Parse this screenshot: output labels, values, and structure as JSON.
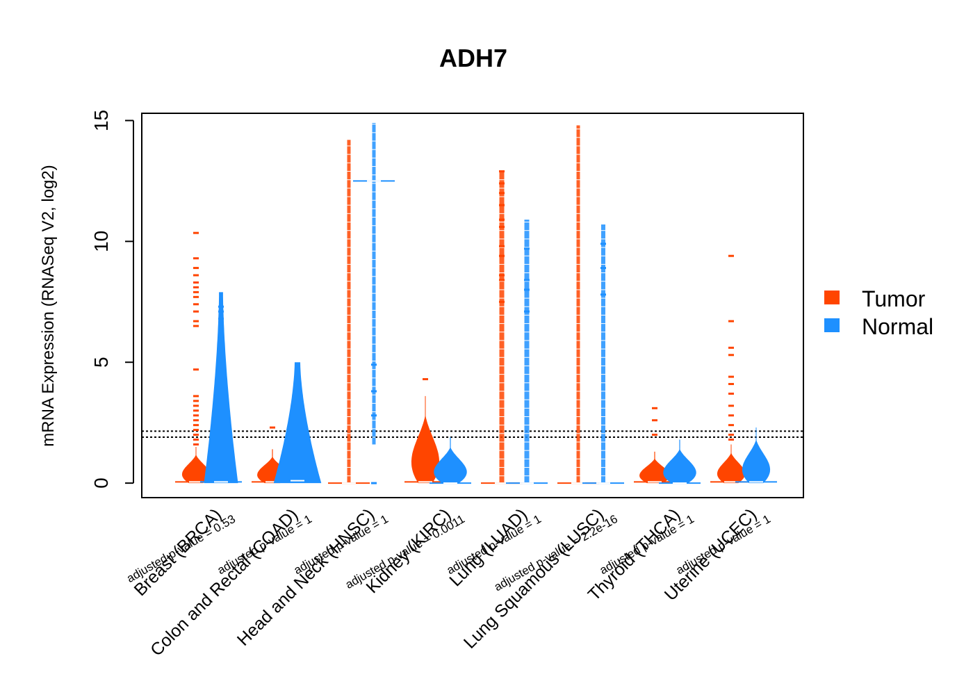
{
  "chart_data": {
    "type": "beanplot",
    "title": "ADH7",
    "ylabel": "mRNA Expression (RNASeq V2, log2)",
    "xlabel": "",
    "ylim": [
      -0.6,
      15.3
    ],
    "yticks": [
      0,
      5,
      10,
      15
    ],
    "reference_lines": [
      1.9,
      2.15
    ],
    "legend": {
      "position": "right",
      "items": [
        {
          "name": "Tumor",
          "color": "#FF4500"
        },
        {
          "name": "Normal",
          "color": "#1E90FF"
        }
      ]
    },
    "categories": [
      {
        "label": "Breast (BRCA)",
        "pvalue_label": "adjusted p-value = 0.53",
        "tumor": {
          "min": 0,
          "max": 1.5,
          "width": 0.55,
          "median": 0.05,
          "outliers": [
            1.6,
            1.8,
            2.0,
            2.2,
            2.4,
            2.6,
            2.8,
            3.0,
            3.2,
            3.4,
            3.6,
            4.7,
            6.5,
            6.7,
            7.1,
            7.4,
            7.7,
            7.9,
            8.1,
            8.3,
            8.6,
            8.9,
            9.3,
            10.35
          ]
        },
        "normal": {
          "min": 0,
          "max": 7.9,
          "width": 0.5,
          "median": 0.05,
          "outliers": [
            4.0,
            4.3,
            4.6,
            5.0,
            5.3,
            5.7,
            6.1,
            6.5,
            6.8,
            7.1,
            7.3
          ]
        }
      },
      {
        "label": "Colon and Rectal (COAD)",
        "pvalue_label": "adjusted p-value = 1",
        "tumor": {
          "min": 0,
          "max": 1.4,
          "width": 0.6,
          "median": 0.05,
          "outliers": [
            2.3
          ]
        },
        "normal": {
          "min": 0,
          "max": 5.0,
          "width": 0.7,
          "median": 0.1,
          "outliers": [
            4.3
          ]
        }
      },
      {
        "label": "Head and Neck (HNSC)",
        "pvalue_label": "adjusted p-value = 1",
        "tumor": {
          "min": 0,
          "max": 14.2,
          "width": 0.25,
          "median": 0.0,
          "outliers": []
        },
        "normal": {
          "min": 1.6,
          "max": 14.9,
          "width": 0.25,
          "median": 12.5,
          "outliers": [
            0.0,
            2.8,
            3.8,
            4.9
          ]
        }
      },
      {
        "label": "Kidney (KIRC)",
        "pvalue_label": "adjusted p-value = 0.0011",
        "tumor": {
          "min": 0,
          "max": 3.6,
          "width": 0.55,
          "median": 0.05,
          "outliers": [
            4.3
          ]
        },
        "normal": {
          "min": 0,
          "max": 1.9,
          "width": 0.65,
          "median": 0.0,
          "outliers": []
        }
      },
      {
        "label": "Lung (LUAD)",
        "pvalue_label": "adjusted p-value = 1",
        "tumor": {
          "min": 0,
          "max": 12.9,
          "width": 0.35,
          "median": 0.0,
          "outliers": [
            7.5,
            8.4,
            8.6,
            9.4,
            9.8,
            10.6,
            10.9,
            11.5,
            12.0,
            12.4,
            12.9
          ]
        },
        "normal": {
          "min": 0,
          "max": 10.9,
          "width": 0.35,
          "median": 0.0,
          "outliers": [
            7.1,
            8.0,
            8.4,
            9.7
          ]
        }
      },
      {
        "label": "Lung Squamous (LUSC)",
        "pvalue_label": "adjusted p-value = 2.2e-16",
        "tumor": {
          "min": 0,
          "max": 14.8,
          "width": 0.25,
          "median": 0.0,
          "outliers": []
        },
        "normal": {
          "min": 0,
          "max": 10.7,
          "width": 0.3,
          "median": 0.0,
          "outliers": [
            7.8,
            8.9,
            9.9
          ]
        }
      },
      {
        "label": "Thyroid (THCA)",
        "pvalue_label": "adjusted p-value = 1",
        "tumor": {
          "min": 0,
          "max": 1.3,
          "width": 0.6,
          "median": 0.05,
          "outliers": [
            2.0,
            2.6,
            3.1
          ]
        },
        "normal": {
          "min": 0,
          "max": 1.8,
          "width": 0.65,
          "median": 0.0,
          "outliers": []
        }
      },
      {
        "label": "Uterine (UCEC)",
        "pvalue_label": "adjusted p-value = 1",
        "tumor": {
          "min": 0,
          "max": 1.6,
          "width": 0.55,
          "median": 0.05,
          "outliers": [
            1.8,
            2.0,
            2.4,
            2.8,
            3.2,
            3.7,
            4.1,
            4.4,
            5.3,
            5.6,
            6.7,
            9.4
          ]
        },
        "normal": {
          "min": 0,
          "max": 2.3,
          "width": 0.55,
          "median": 0.05,
          "outliers": [
            1.0
          ]
        }
      }
    ]
  }
}
